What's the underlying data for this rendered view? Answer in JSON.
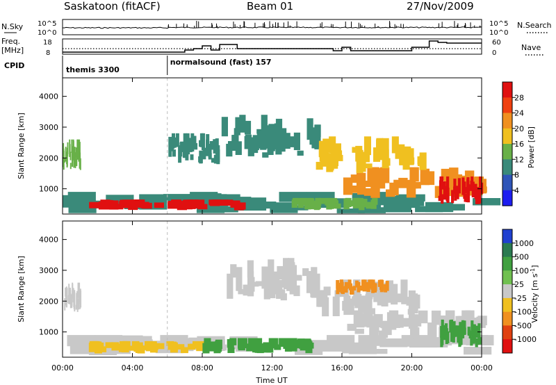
{
  "header": {
    "station": "Saskatoon (fitACF)",
    "beam": "Beam 01",
    "date": "27/Nov/2009"
  },
  "noise_panel": {
    "left_label": "N.Sky",
    "left_ticks": [
      "10^5",
      "10^0"
    ],
    "right_ticks": [
      "10^5",
      "10^0"
    ],
    "right_label": "N.Search"
  },
  "freq_panel": {
    "left_label_1": "Freq.",
    "left_label_2": "[MHz]",
    "left_ticks": [
      "18",
      "8"
    ],
    "right_ticks": [
      "60",
      "0"
    ],
    "right_label": "Nave"
  },
  "cpid": {
    "label": "CPID",
    "modes": [
      {
        "name": "themis 3300",
        "start_hour": 0
      },
      {
        "name": "normalsound (fast) 157",
        "start_hour": 6
      }
    ]
  },
  "chart_data": [
    {
      "type": "heatmap",
      "ylabel": "Slant Range [km]",
      "yticks": [
        "1000",
        "2000",
        "3000",
        "4000"
      ],
      "ylim": [
        180,
        4600
      ],
      "colorbar": {
        "label": "Power [dB]",
        "ticks": [
          "4",
          "8",
          "12",
          "16",
          "20",
          "24",
          "28"
        ],
        "range": [
          0,
          30
        ],
        "colors": [
          "#1d1df0",
          "#2f55b8",
          "#3a8a7a",
          "#68b048",
          "#f0c020",
          "#f09020",
          "#f04010",
          "#e01010"
        ]
      },
      "regions": [
        {
          "t0": 0.0,
          "t1": 24.0,
          "r0": 200,
          "r1": 900,
          "value": 10
        },
        {
          "t0": 1.5,
          "t1": 10.0,
          "r0": 300,
          "r1": 650,
          "value": 28
        },
        {
          "t0": 13.0,
          "t1": 18.0,
          "r0": 300,
          "r1": 700,
          "value": 14
        },
        {
          "t0": 0.0,
          "t1": 1.0,
          "r0": 1600,
          "r1": 2600,
          "value": 14
        },
        {
          "t0": 16.0,
          "t1": 24.0,
          "r0": 700,
          "r1": 1700,
          "value": 22
        },
        {
          "t0": 21.5,
          "t1": 24.0,
          "r0": 500,
          "r1": 1400,
          "value": 28
        },
        {
          "t0": 9.0,
          "t1": 14.5,
          "r0": 2000,
          "r1": 3400,
          "value": 10
        },
        {
          "t0": 14.5,
          "t1": 20.5,
          "r0": 1500,
          "r1": 2700,
          "value": 16
        },
        {
          "t0": 6.0,
          "t1": 9.0,
          "r0": 1800,
          "r1": 2800,
          "value": 10
        }
      ]
    },
    {
      "type": "heatmap",
      "ylabel": "Slant Range [km]",
      "yticks": [
        "1000",
        "2000",
        "3000",
        "4000"
      ],
      "ylim": [
        180,
        4600
      ],
      "colorbar": {
        "label": "Velocity [m s^-1]",
        "ticks": [
          "1000",
          "500",
          "100",
          "25",
          "-25",
          "-100",
          "-500",
          "-1000"
        ],
        "colors": [
          "#2040d0",
          "#2a7a50",
          "#40a040",
          "#70c050",
          "#c8c8c8",
          "#f0c020",
          "#f09020",
          "#e04010",
          "#e01010"
        ]
      },
      "regions": [
        {
          "t0": 0.0,
          "t1": 24.0,
          "r0": 200,
          "r1": 900,
          "value": "25"
        },
        {
          "t0": 1.5,
          "t1": 8.0,
          "r0": 300,
          "r1": 700,
          "value": "-100"
        },
        {
          "t0": 8.0,
          "t1": 14.0,
          "r0": 300,
          "r1": 800,
          "value": "100"
        },
        {
          "t0": 0.0,
          "t1": 1.0,
          "r0": 1600,
          "r1": 2600,
          "value": "25"
        },
        {
          "t0": 9.0,
          "t1": 14.5,
          "r0": 2000,
          "r1": 3400,
          "value": "25"
        },
        {
          "t0": 14.5,
          "t1": 20.5,
          "r0": 1500,
          "r1": 2700,
          "value": "25"
        },
        {
          "t0": 15.5,
          "t1": 18.5,
          "r0": 2200,
          "r1": 2700,
          "value": "-500"
        },
        {
          "t0": 16.0,
          "t1": 24.0,
          "r0": 700,
          "r1": 1700,
          "value": "25"
        },
        {
          "t0": 21.5,
          "t1": 24.0,
          "r0": 500,
          "r1": 1400,
          "value": "100"
        }
      ]
    }
  ],
  "x_axis": {
    "ticks": [
      "00:00",
      "04:00",
      "08:00",
      "12:00",
      "16:00",
      "20:00",
      "00:00"
    ],
    "xlabel": "Time UT",
    "xlim": [
      0,
      24
    ]
  }
}
